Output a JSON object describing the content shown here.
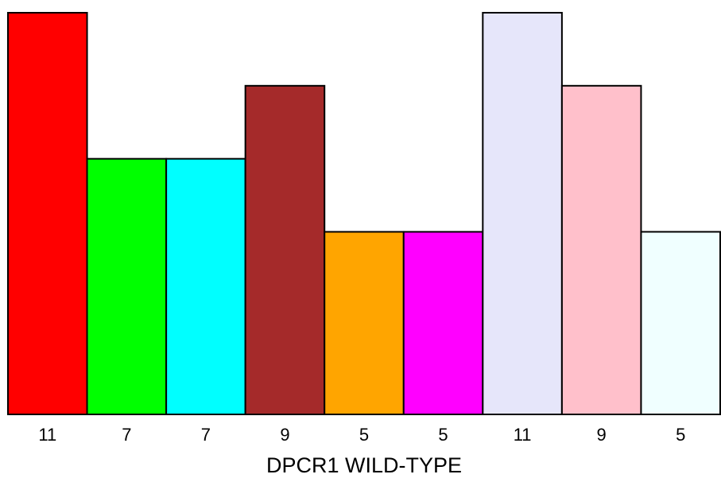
{
  "chart_data": {
    "type": "bar",
    "title": "",
    "xlabel": "DPCR1 WILD-TYPE",
    "ylabel": "",
    "values": [
      11,
      7,
      7,
      9,
      5,
      5,
      11,
      9,
      5
    ],
    "tick_labels": [
      "11",
      "7",
      "7",
      "9",
      "5",
      "5",
      "11",
      "9",
      "5"
    ],
    "colors": [
      "#ff0000",
      "#00ff00",
      "#00ffff",
      "#a52a2a",
      "#ffa500",
      "#ff00ff",
      "#e6e6fa",
      "#ffc0cb",
      "#f0ffff"
    ],
    "ylim": [
      0,
      11
    ],
    "grid": false,
    "legend": "none"
  }
}
